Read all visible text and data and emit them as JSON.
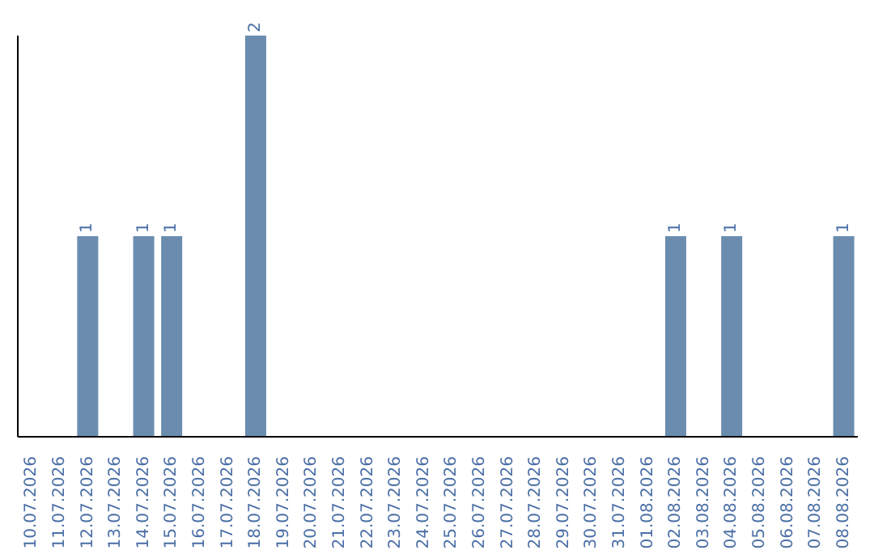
{
  "chart_data": {
    "type": "bar",
    "categories": [
      "10.07.2026",
      "11.07.2026",
      "12.07.2026",
      "13.07.2026",
      "14.07.2026",
      "15.07.2026",
      "16.07.2026",
      "17.07.2026",
      "18.07.2026",
      "19.07.2026",
      "20.07.2026",
      "21.07.2026",
      "22.07.2026",
      "23.07.2026",
      "24.07.2026",
      "25.07.2026",
      "26.07.2026",
      "27.07.2026",
      "28.07.2026",
      "29.07.2026",
      "30.07.2026",
      "31.07.2026",
      "01.08.2026",
      "02.08.2026",
      "03.08.2026",
      "04.08.2026",
      "05.08.2026",
      "06.08.2026",
      "07.08.2026",
      "08.08.2026"
    ],
    "values": [
      0,
      0,
      1,
      0,
      1,
      1,
      0,
      0,
      2,
      0,
      0,
      0,
      0,
      0,
      0,
      0,
      0,
      0,
      0,
      0,
      0,
      0,
      0,
      1,
      0,
      1,
      0,
      0,
      0,
      1
    ],
    "value_labels": [
      null,
      null,
      "1",
      null,
      "1",
      "1",
      null,
      null,
      "2",
      null,
      null,
      null,
      null,
      null,
      null,
      null,
      null,
      null,
      null,
      null,
      null,
      null,
      null,
      "1",
      null,
      "1",
      null,
      null,
      null,
      "1"
    ],
    "color": "#6a8caf",
    "grid": false,
    "legend": false
  }
}
